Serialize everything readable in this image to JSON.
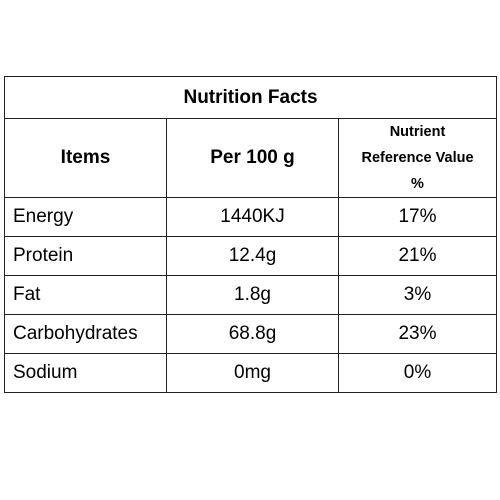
{
  "table": {
    "title": "Nutrition Facts",
    "headers": {
      "items": "Items",
      "per_100g": "Per 100 g",
      "nrv_line1": "Nutrient",
      "nrv_line2": "Reference Value",
      "nrv_line3": "%"
    },
    "rows": [
      {
        "item": "Energy",
        "amount": "1440KJ",
        "nrv": "17%"
      },
      {
        "item": "Protein",
        "amount": "12.4g",
        "nrv": "21%"
      },
      {
        "item": "Fat",
        "amount": "1.8g",
        "nrv": "3%"
      },
      {
        "item": "Carbohydrates",
        "amount": "68.8g",
        "nrv": "23%"
      },
      {
        "item": "Sodium",
        "amount": "0mg",
        "nrv": "0%"
      }
    ]
  }
}
